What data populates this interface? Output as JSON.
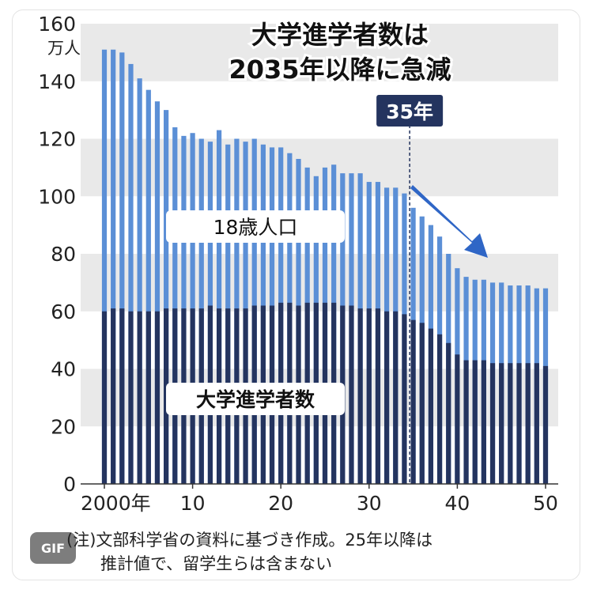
{
  "chart_data": {
    "type": "bar",
    "title_line1": "大学進学者数は",
    "title_line2": "2035年以降に急減",
    "y_unit": "万人",
    "ylim": [
      0,
      160
    ],
    "yticks": [
      0,
      20,
      40,
      60,
      80,
      100,
      120,
      140,
      160
    ],
    "grid": "alternating horizontal bands",
    "xticks": [
      {
        "value": 0,
        "label": "2000年"
      },
      {
        "value": 10,
        "label": "10"
      },
      {
        "value": 20,
        "label": "20"
      },
      {
        "value": 30,
        "label": "30"
      },
      {
        "value": 40,
        "label": "40"
      },
      {
        "value": 50,
        "label": "50"
      }
    ],
    "x": [
      0,
      1,
      2,
      3,
      4,
      5,
      6,
      7,
      8,
      9,
      10,
      11,
      12,
      13,
      14,
      15,
      16,
      17,
      18,
      19,
      20,
      21,
      22,
      23,
      24,
      25,
      26,
      27,
      28,
      29,
      30,
      31,
      32,
      33,
      34,
      35,
      36,
      37,
      38,
      39,
      40,
      41,
      42,
      43,
      44,
      45,
      46,
      47,
      48,
      49,
      50
    ],
    "series": [
      {
        "name": "18歳人口",
        "color": "#5b8fd6",
        "values": [
          151,
          151,
          150,
          146,
          141,
          137,
          133,
          130,
          124,
          121,
          122,
          120,
          119,
          123,
          118,
          120,
          119,
          120,
          118,
          117,
          117,
          115,
          113,
          110,
          107,
          110,
          111,
          108,
          108,
          108,
          105,
          105,
          103,
          103,
          101,
          96,
          93,
          90,
          86,
          80,
          75,
          72,
          71,
          71,
          70,
          70,
          69,
          69,
          69,
          68,
          68
        ]
      },
      {
        "name": "大学進学者数",
        "color": "#24345f",
        "values": [
          60,
          61,
          61,
          60,
          60,
          60,
          60,
          61,
          61,
          61,
          61,
          61,
          62,
          61,
          61,
          61,
          61,
          62,
          62,
          62,
          63,
          63,
          62,
          63,
          63,
          63,
          63,
          62,
          62,
          61,
          61,
          61,
          60,
          60,
          59,
          57,
          56,
          54,
          52,
          49,
          45,
          43,
          43,
          43,
          42,
          42,
          42,
          42,
          42,
          42,
          41
        ]
      }
    ],
    "label_upper": "18歳人口",
    "label_lower": "大学進学者数",
    "marker": {
      "x": 34.6,
      "label": "35年"
    }
  },
  "note_line1": "(注)文部科学省の資料に基づき作成。25年以降は",
  "note_line2": "推計値で、留学生らは含まない",
  "badge": "GIF",
  "colors": {
    "band": "#e9e9e9",
    "upper": "#5b8fd6",
    "lower": "#24345f",
    "marker_box": "#24345f",
    "arrow": "#2f66c6"
  }
}
